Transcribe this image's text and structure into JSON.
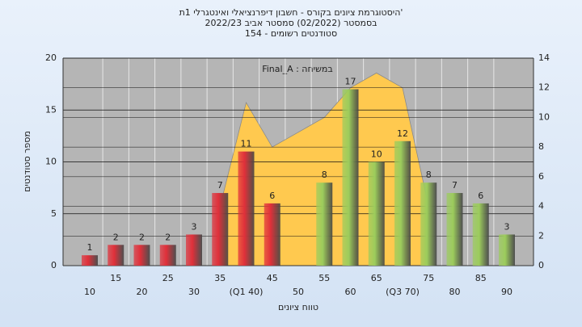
{
  "chart_data": {
    "type": "bar",
    "title": [
      "היסטוגרמת ציונים בקורס - חשבון דיפרנציאלי ואינטגרלי 1ת'",
      "בסמסטר (02/2022)  סמסטר אביב 2022/23",
      "סטודנטים רשומים - 154"
    ],
    "annotation": "Final_A : במשיחה",
    "y_label": "מספר סטודנטים",
    "x_label": "טווח ציונים",
    "categories": [
      "10",
      "15",
      "20",
      "25",
      "30",
      "35",
      "(Q1 40)",
      "45",
      "50",
      "55",
      "60",
      "65",
      "(Q3 70)",
      "75",
      "80",
      "85",
      "90"
    ],
    "values": [
      1,
      2,
      2,
      2,
      3,
      7,
      11,
      6,
      null,
      8,
      17,
      10,
      12,
      8,
      7,
      6,
      3
    ],
    "colors": [
      "#e0303a",
      "#e0303a",
      "#e0303a",
      "#e0303a",
      "#e0303a",
      "#e0303a",
      "#e0303a",
      "#e0303a",
      "#e0303a",
      "#9ccc5c",
      "#9ccc5c",
      "#9ccc5c",
      "#9ccc5c",
      "#9ccc5c",
      "#9ccc5c",
      "#9ccc5c",
      "#9ccc5c"
    ],
    "area": {
      "axis": "y2",
      "color": "#ffc94f",
      "values": [
        null,
        null,
        null,
        null,
        null,
        4,
        11,
        8,
        9,
        10,
        12,
        13,
        12,
        4,
        null,
        null,
        null
      ]
    },
    "ylim": [
      0,
      20
    ],
    "yticks": [
      0,
      5,
      10,
      15,
      20
    ],
    "y2lim": [
      0,
      14
    ],
    "y2ticks": [
      0,
      2,
      4,
      6,
      8,
      10,
      12,
      14
    ],
    "grid": true
  }
}
